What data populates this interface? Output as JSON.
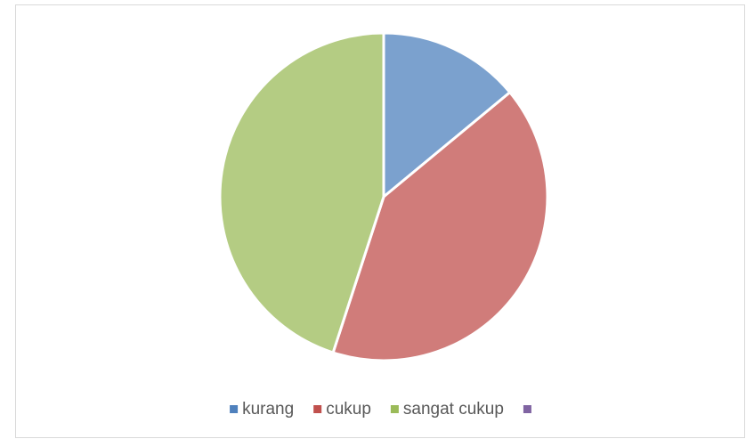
{
  "chart_data": {
    "type": "pie",
    "categories": [
      "kurang",
      "cukup",
      "sangat cukup",
      null
    ],
    "values": [
      14,
      41,
      45,
      0
    ],
    "colors": [
      "#4f81bd",
      "#c0504d",
      "#9bbb59",
      "#8064a2"
    ],
    "legend": "bottom"
  }
}
